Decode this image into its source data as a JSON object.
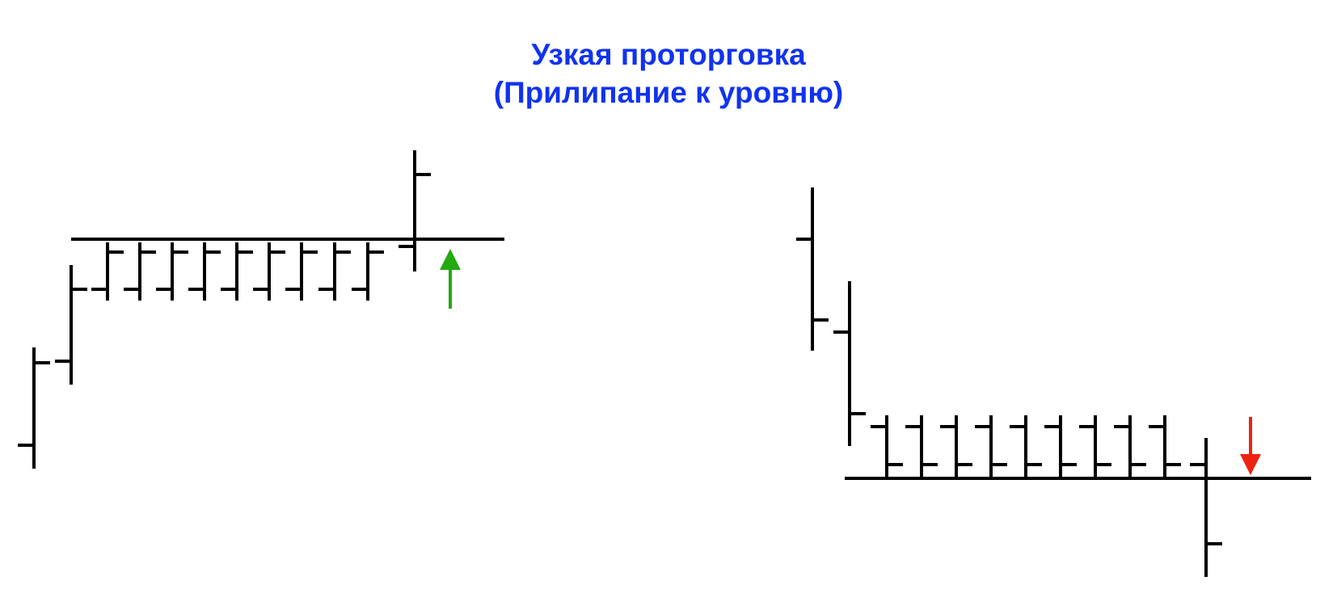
{
  "title": {
    "line1": "Узкая проторговка",
    "line2": "(Прилипание к уровню)"
  },
  "colors": {
    "title": "#1133ee",
    "bars": "#000000",
    "breakout_up_arrow": "#22aa11",
    "breakout_down_arrow": "#ee2211"
  },
  "icons": {
    "up_arrow": "arrow-up-icon",
    "down_arrow": "arrow-down-icon"
  },
  "panels": [
    {
      "name": "resistance-breakout",
      "level": "resistance",
      "breakout": "up"
    },
    {
      "name": "support-breakout",
      "level": "support",
      "breakout": "down"
    }
  ]
}
